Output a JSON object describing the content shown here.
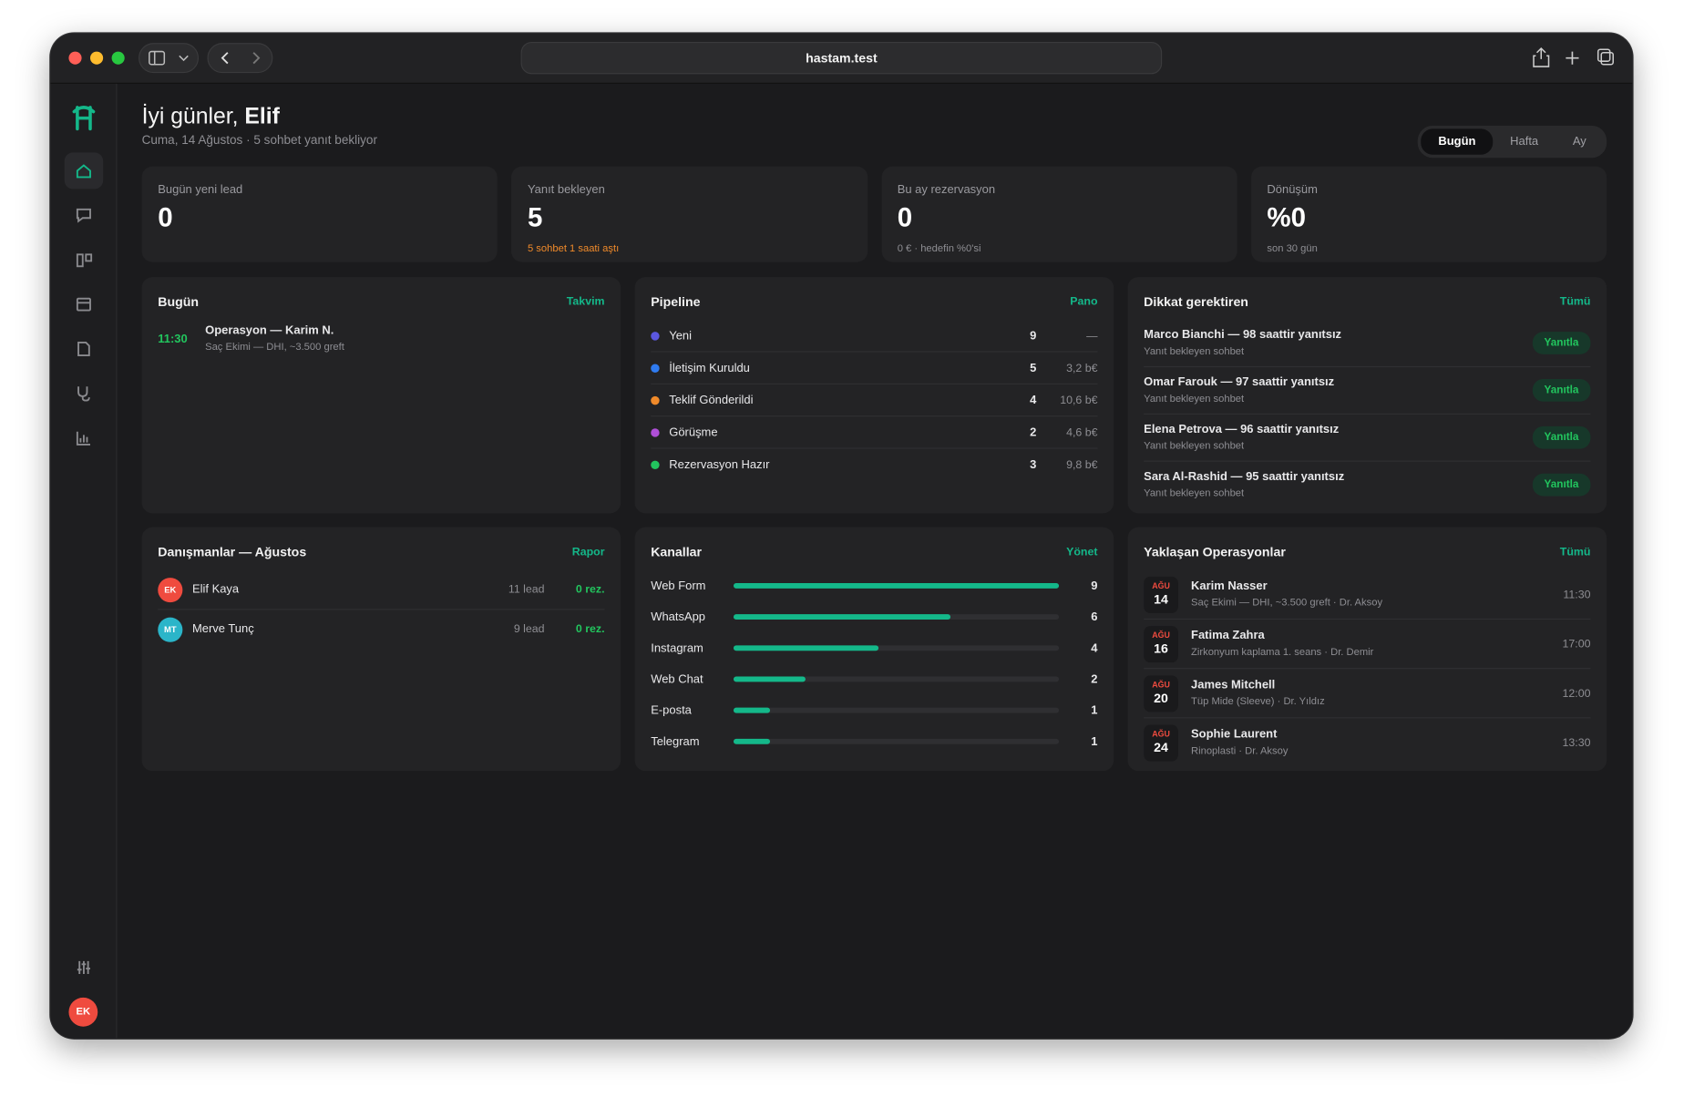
{
  "browser": {
    "url": "hastam.test"
  },
  "sidebar": {
    "avatar": "EK"
  },
  "header": {
    "greeting": "İyi günler,",
    "name": "Elif",
    "subtitle": "Cuma, 14 Ağustos · 5 sohbet yanıt bekliyor",
    "range_tabs": [
      "Bugün",
      "Hafta",
      "Ay"
    ]
  },
  "stats": [
    {
      "label": "Bugün yeni lead",
      "value": 0
    },
    {
      "label": "Yanıt bekleyen",
      "value": 5,
      "note": "5 sohbet 1 saati aştı"
    },
    {
      "label": "Bu ay rezervasyon",
      "value": 0,
      "note": "0 € · hedefin %0'si"
    },
    {
      "label": "Dönüşüm",
      "value": "%0",
      "note": "son 30 gün"
    }
  ],
  "today": {
    "title": "Bugün",
    "link": "Takvim",
    "events": [
      {
        "time": "11:30",
        "title": "Operasyon — Karim N.",
        "detail": "Saç Ekimi — DHI, ~3.500 greft"
      }
    ]
  },
  "pipeline": {
    "title": "Pipeline",
    "link": "Pano",
    "stages": [
      {
        "name": "Yeni",
        "color": "#5b57e0",
        "count": 9,
        "amount": "—"
      },
      {
        "name": "İletişim Kuruldu",
        "color": "#2f7bf0",
        "count": 5,
        "amount": "3,2 b€"
      },
      {
        "name": "Teklif Gönderildi",
        "color": "#f08a2a",
        "count": 4,
        "amount": "10,6 b€"
      },
      {
        "name": "Görüşme",
        "color": "#b04fd8",
        "count": 2,
        "amount": "4,6 b€"
      },
      {
        "name": "Rezervasyon Hazır",
        "color": "#22c55e",
        "count": 3,
        "amount": "9,8 b€"
      }
    ]
  },
  "attention": {
    "title": "Dikkat gerektiren",
    "link": "Tümü",
    "items": [
      {
        "title": "Marco Bianchi — 98 saattir yanıtsız",
        "detail": "Yanıt bekleyen sohbet",
        "action": "Yanıtla"
      },
      {
        "title": "Omar Farouk — 97 saattir yanıtsız",
        "detail": "Yanıt bekleyen sohbet",
        "action": "Yanıtla"
      },
      {
        "title": "Elena Petrova — 96 saattir yanıtsız",
        "detail": "Yanıt bekleyen sohbet",
        "action": "Yanıtla"
      },
      {
        "title": "Sara Al-Rashid — 95 saattir yanıtsız",
        "detail": "Yanıt bekleyen sohbet",
        "action": "Yanıtla"
      }
    ]
  },
  "consultants": {
    "title": "Danışmanlar — Ağustos",
    "link": "Rapor",
    "rows": [
      {
        "initials": "EK",
        "color": "#ef4b3f",
        "name": "Elif Kaya",
        "leads": "11 lead",
        "reservations": "0 rez."
      },
      {
        "initials": "MT",
        "color": "#2bb5c9",
        "name": "Merve Tunç",
        "leads": "9 lead",
        "reservations": "0 rez."
      }
    ]
  },
  "channels": {
    "title": "Kanallar",
    "link": "Yönet",
    "color": "#14b88a",
    "rows": [
      {
        "name": "Web Form",
        "value": 9
      },
      {
        "name": "WhatsApp",
        "value": 6
      },
      {
        "name": "Instagram",
        "value": 4
      },
      {
        "name": "Web Chat",
        "value": 2
      },
      {
        "name": "E-posta",
        "value": 1
      },
      {
        "name": "Telegram",
        "value": 1
      }
    ]
  },
  "operations": {
    "title": "Yaklaşan Operasyonlar",
    "link": "Tümü",
    "items": [
      {
        "month": "AĞU",
        "day": "14",
        "name": "Karim Nasser",
        "detail": "Saç Ekimi — DHI, ~3.500 greft · Dr. Aksoy",
        "time": "11:30"
      },
      {
        "month": "AĞU",
        "day": "16",
        "name": "Fatima Zahra",
        "detail": "Zirkonyum kaplama 1. seans · Dr. Demir",
        "time": "17:00"
      },
      {
        "month": "AĞU",
        "day": "20",
        "name": "James Mitchell",
        "detail": "Tüp Mide (Sleeve) · Dr. Yıldız",
        "time": "12:00"
      },
      {
        "month": "AĞU",
        "day": "24",
        "name": "Sophie Laurent",
        "detail": "Rinoplasti · Dr. Aksoy",
        "time": "13:30"
      }
    ]
  }
}
